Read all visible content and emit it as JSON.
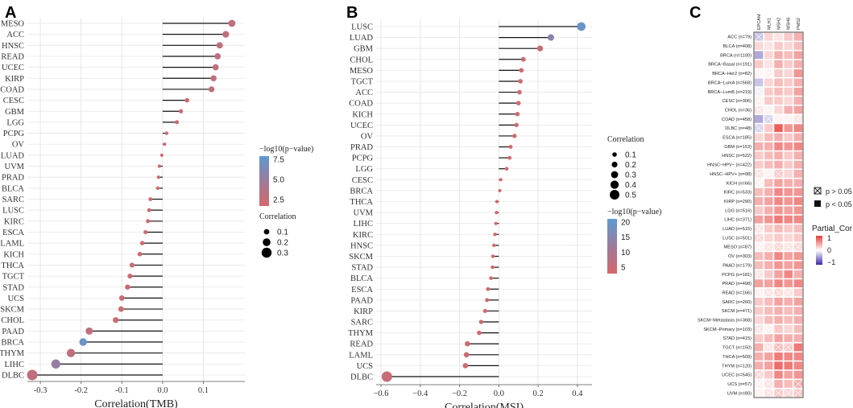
{
  "chart_data": [
    {
      "panel": "A",
      "type": "lollipop",
      "xlabel": "Correlation(TMB)",
      "xlim": [
        -0.32,
        0.19
      ],
      "xticks": [
        "-0.3",
        "-0.2",
        "-0.1",
        "0.0",
        "0.1"
      ],
      "xtick_values": [
        -0.3,
        -0.2,
        -0.1,
        0.0,
        0.1
      ],
      "categories": [
        "MESO",
        "ACC",
        "HNSC",
        "READ",
        "UCEC",
        "KIRP",
        "COAD",
        "CESC",
        "GBM",
        "LGG",
        "PCPG",
        "OV",
        "LUAD",
        "UVM",
        "PRAD",
        "BLCA",
        "SARC",
        "LUSC",
        "KIRC",
        "ESCA",
        "LAML",
        "KICH",
        "THCA",
        "TGCT",
        "STAD",
        "UCS",
        "SKCM",
        "CHOL",
        "PAAD",
        "BRCA",
        "THYM",
        "LIHC",
        "DLBC"
      ],
      "values": [
        0.17,
        0.155,
        0.14,
        0.135,
        0.13,
        0.125,
        0.12,
        0.06,
        0.045,
        0.035,
        0.01,
        0.005,
        -0.002,
        -0.008,
        -0.01,
        -0.012,
        -0.03,
        -0.033,
        -0.036,
        -0.042,
        -0.05,
        -0.056,
        -0.075,
        -0.08,
        -0.086,
        -0.1,
        -0.102,
        -0.115,
        -0.18,
        -0.195,
        -0.225,
        -0.262,
        -0.32
      ],
      "neglog10p": [
        2,
        2,
        2,
        2,
        2,
        2,
        2,
        1,
        1,
        1,
        1,
        0.5,
        0.5,
        0.5,
        0.5,
        0.5,
        0.5,
        0.5,
        0.5,
        0.5,
        0.5,
        0.5,
        1,
        1,
        1,
        1,
        1,
        1,
        2,
        9,
        2,
        5.5,
        2
      ],
      "legend_color_title": "−log10(p−value)",
      "legend_color_ticks": [
        "7.5",
        "5.0",
        "2.5"
      ],
      "legend_color_range": [
        0,
        10
      ],
      "legend_size_title": "Correlation",
      "legend_size_labels": [
        "0.1",
        "0.2",
        "0.3"
      ],
      "legend_size_values": [
        0.1,
        0.2,
        0.3
      ]
    },
    {
      "panel": "B",
      "type": "lollipop",
      "xlabel": "Correlation(MSI)",
      "xlim": [
        -0.6,
        0.45
      ],
      "xticks": [
        "−0.6",
        "−0.4",
        "−0.2",
        "0.0",
        "0.2",
        "0.4"
      ],
      "xtick_values": [
        -0.6,
        -0.4,
        -0.2,
        0.0,
        0.2,
        0.4
      ],
      "categories": [
        "LUSC",
        "LUAD",
        "GBM",
        "CHOL",
        "MESO",
        "TGCT",
        "ACC",
        "COAD",
        "KICH",
        "UCEC",
        "OV",
        "PRAD",
        "PCPG",
        "LGG",
        "CESC",
        "BRCA",
        "THCA",
        "UVM",
        "LIHC",
        "KIRC",
        "HNSC",
        "SKCM",
        "STAD",
        "BLCA",
        "ESCA",
        "PAAD",
        "KIRP",
        "SARC",
        "THYM",
        "READ",
        "LAML",
        "UCS",
        "DLBC"
      ],
      "values": [
        0.42,
        0.265,
        0.21,
        0.125,
        0.115,
        0.11,
        0.105,
        0.1,
        0.095,
        0.09,
        0.08,
        0.06,
        0.055,
        0.04,
        0.01,
        0.005,
        -0.01,
        -0.012,
        -0.015,
        -0.02,
        -0.025,
        -0.03,
        -0.032,
        -0.04,
        -0.055,
        -0.06,
        -0.07,
        -0.09,
        -0.1,
        -0.16,
        -0.165,
        -0.17,
        -0.57
      ],
      "neglog10p": [
        20,
        15,
        3,
        2,
        2,
        2,
        2,
        2,
        2,
        2,
        2,
        1,
        1,
        1,
        0.5,
        0.5,
        0.5,
        0.5,
        0.5,
        0.5,
        0.5,
        0.5,
        0.5,
        0.5,
        1,
        1,
        1,
        1,
        1,
        2,
        2,
        2,
        3
      ],
      "legend_color_title": "−log10(p−value)",
      "legend_color_ticks": [
        "20",
        "15",
        "10",
        "5"
      ],
      "legend_color_range": [
        0,
        22
      ],
      "legend_size_title": "Correlation",
      "legend_size_labels": [
        "0.1",
        "0.2",
        "0.3",
        "0.4",
        "0.5"
      ],
      "legend_size_values": [
        0.1,
        0.2,
        0.3,
        0.4,
        0.5
      ]
    },
    {
      "panel": "C",
      "type": "heatmap",
      "columns": [
        "EPCAM",
        "MLH1",
        "MSH2",
        "MSH6",
        "PMS2"
      ],
      "rows": [
        "ACC (n=79)",
        "BLCA (n=408)",
        "BRCA (n=1100)",
        "BRCA−Basal (n=191)",
        "BRCA−Her2 (n=82)",
        "BRCA−LumA (n=568)",
        "BRCA−LumB (n=219)",
        "CESC (n=306)",
        "CHOL (n=36)",
        "COAD (n=458)",
        "DLBC (n=48)",
        "ESCA (n=185)",
        "GBM (n=153)",
        "HNSC (n=522)",
        "HNSC−HPV− (n=422)",
        "HNSC−HPV+ (n=98)",
        "KICH (n=66)",
        "KIRC (n=533)",
        "KIRP (n=290)",
        "LGG (n=516)",
        "LIHC (n=371)",
        "LUAD (n=515)",
        "LUSC (n=501)",
        "MESO (n=87)",
        "OV (n=303)",
        "PAAD (n=179)",
        "PCPG (n=181)",
        "PRAD (n=498)",
        "READ (n=166)",
        "SARC (n=260)",
        "SKCM (n=471)",
        "SKCM−Metastasis (n=368)",
        "SKCM−Primary (n=103)",
        "STAD (n=415)",
        "TGCT (n=150)",
        "THCA (n=509)",
        "THYM (n=120)",
        "UCEC (n=545)",
        "UCS (n=57)",
        "UVM (n=80)"
      ],
      "values": [
        [
          -0.2,
          0.15,
          0.1,
          0.2,
          0.3
        ],
        [
          0.15,
          0.1,
          0.2,
          0.15,
          0.25
        ],
        [
          -0.3,
          0.15,
          0.3,
          0.25,
          0.35
        ],
        [
          0.2,
          0.1,
          0.3,
          0.2,
          0.3
        ],
        [
          0.05,
          0.05,
          0.2,
          0.15,
          0.4
        ],
        [
          -0.2,
          0.15,
          0.25,
          0.2,
          0.3
        ],
        [
          -0.05,
          0.2,
          0.25,
          0.2,
          0.35
        ],
        [
          0.05,
          0.2,
          0.2,
          0.15,
          0.3
        ],
        [
          0.1,
          0.05,
          0.15,
          0.3,
          0.35
        ],
        [
          -0.3,
          -0.15,
          0.05,
          0.05,
          0.1
        ],
        [
          -0.15,
          0.2,
          0.6,
          0.4,
          0.45
        ],
        [
          0.15,
          0.25,
          0.3,
          0.2,
          0.3
        ],
        [
          0.3,
          0.3,
          0.45,
          0.4,
          0.45
        ],
        [
          0.2,
          0.25,
          0.3,
          0.2,
          0.3
        ],
        [
          0.2,
          0.25,
          0.3,
          0.2,
          0.3
        ],
        [
          0.1,
          0.05,
          0.2,
          0.15,
          0.3
        ],
        [
          0.05,
          0.25,
          0.35,
          0.3,
          0.3
        ],
        [
          0.25,
          0.3,
          0.45,
          0.4,
          0.4
        ],
        [
          0.3,
          0.35,
          0.45,
          0.4,
          0.45
        ],
        [
          0.2,
          0.3,
          0.4,
          0.35,
          0.4
        ],
        [
          0.35,
          0.4,
          0.5,
          0.45,
          0.45
        ],
        [
          0.1,
          0.2,
          0.25,
          0.2,
          0.25
        ],
        [
          0.15,
          0.15,
          0.2,
          0.15,
          0.2
        ],
        [
          0.05,
          0.1,
          0.15,
          0.1,
          0.15
        ],
        [
          0.25,
          0.3,
          0.45,
          0.35,
          0.4
        ],
        [
          0.25,
          0.3,
          0.4,
          0.35,
          0.4
        ],
        [
          0.1,
          0.2,
          0.35,
          0.45,
          0.3
        ],
        [
          0.35,
          0.35,
          0.45,
          0.4,
          0.45
        ],
        [
          0.05,
          0.1,
          0.15,
          0.1,
          0.2
        ],
        [
          0.2,
          0.25,
          0.35,
          0.3,
          0.35
        ],
        [
          0.2,
          0.25,
          0.3,
          0.25,
          0.3
        ],
        [
          0.15,
          0.25,
          0.3,
          0.25,
          0.3
        ],
        [
          0.1,
          0.05,
          0.2,
          0.15,
          0.25
        ],
        [
          0.2,
          0.25,
          0.35,
          0.3,
          0.3
        ],
        [
          0.3,
          0.1,
          0.25,
          0.2,
          0.5
        ],
        [
          0.3,
          0.35,
          0.5,
          0.45,
          0.45
        ],
        [
          0.3,
          0.35,
          0.55,
          0.5,
          0.45
        ],
        [
          0.15,
          0.2,
          0.45,
          0.35,
          0.4
        ],
        [
          0.05,
          0.1,
          0.3,
          0.25,
          0.3
        ],
        [
          0.05,
          0.1,
          0.2,
          0.15,
          0.2
        ]
      ],
      "nonsig": [
        [
          1,
          0,
          0,
          0,
          0
        ],
        [
          0,
          0,
          0,
          0,
          0
        ],
        [
          0,
          0,
          0,
          0,
          0
        ],
        [
          0,
          0,
          0,
          0,
          0
        ],
        [
          1,
          1,
          0,
          0,
          0
        ],
        [
          0,
          0,
          0,
          0,
          0
        ],
        [
          1,
          0,
          0,
          0,
          0
        ],
        [
          1,
          0,
          0,
          0,
          0
        ],
        [
          1,
          1,
          0,
          0,
          0
        ],
        [
          0,
          1,
          1,
          1,
          1
        ],
        [
          1,
          0,
          0,
          0,
          0
        ],
        [
          0,
          0,
          0,
          0,
          0
        ],
        [
          0,
          0,
          0,
          0,
          0
        ],
        [
          0,
          0,
          0,
          0,
          0
        ],
        [
          0,
          0,
          0,
          0,
          0
        ],
        [
          1,
          1,
          1,
          0,
          0
        ],
        [
          1,
          0,
          0,
          0,
          0
        ],
        [
          0,
          0,
          0,
          0,
          0
        ],
        [
          0,
          0,
          0,
          0,
          0
        ],
        [
          0,
          0,
          0,
          0,
          0
        ],
        [
          0,
          0,
          0,
          0,
          0
        ],
        [
          1,
          0,
          0,
          0,
          0
        ],
        [
          1,
          0,
          0,
          0,
          0
        ],
        [
          1,
          1,
          1,
          1,
          1
        ],
        [
          0,
          0,
          0,
          0,
          0
        ],
        [
          0,
          0,
          0,
          0,
          0
        ],
        [
          1,
          0,
          0,
          0,
          0
        ],
        [
          0,
          0,
          0,
          0,
          0
        ],
        [
          1,
          1,
          1,
          1,
          0
        ],
        [
          0,
          0,
          0,
          0,
          0
        ],
        [
          0,
          0,
          0,
          0,
          0
        ],
        [
          0,
          0,
          0,
          0,
          0
        ],
        [
          1,
          1,
          0,
          0,
          0
        ],
        [
          0,
          0,
          0,
          0,
          0
        ],
        [
          0,
          1,
          1,
          1,
          0
        ],
        [
          0,
          0,
          0,
          0,
          0
        ],
        [
          0,
          0,
          0,
          0,
          0
        ],
        [
          1,
          0,
          0,
          0,
          0
        ],
        [
          1,
          1,
          0,
          0,
          1
        ],
        [
          1,
          1,
          1,
          1,
          1
        ]
      ],
      "legend_symbol_labels": [
        "p > 0.05",
        "p < 0.05"
      ],
      "legend_color_title": "Partial_Cor",
      "legend_color_ticks": [
        "1",
        "0",
        "−1"
      ]
    }
  ],
  "colors": {
    "low": "#d6676a",
    "mid": "#9d7b9a",
    "high": "#5d9ad2",
    "pos": "#e83a36",
    "neg": "#3b2aa8",
    "line": "#111111",
    "grid": "#e6e6e6"
  }
}
